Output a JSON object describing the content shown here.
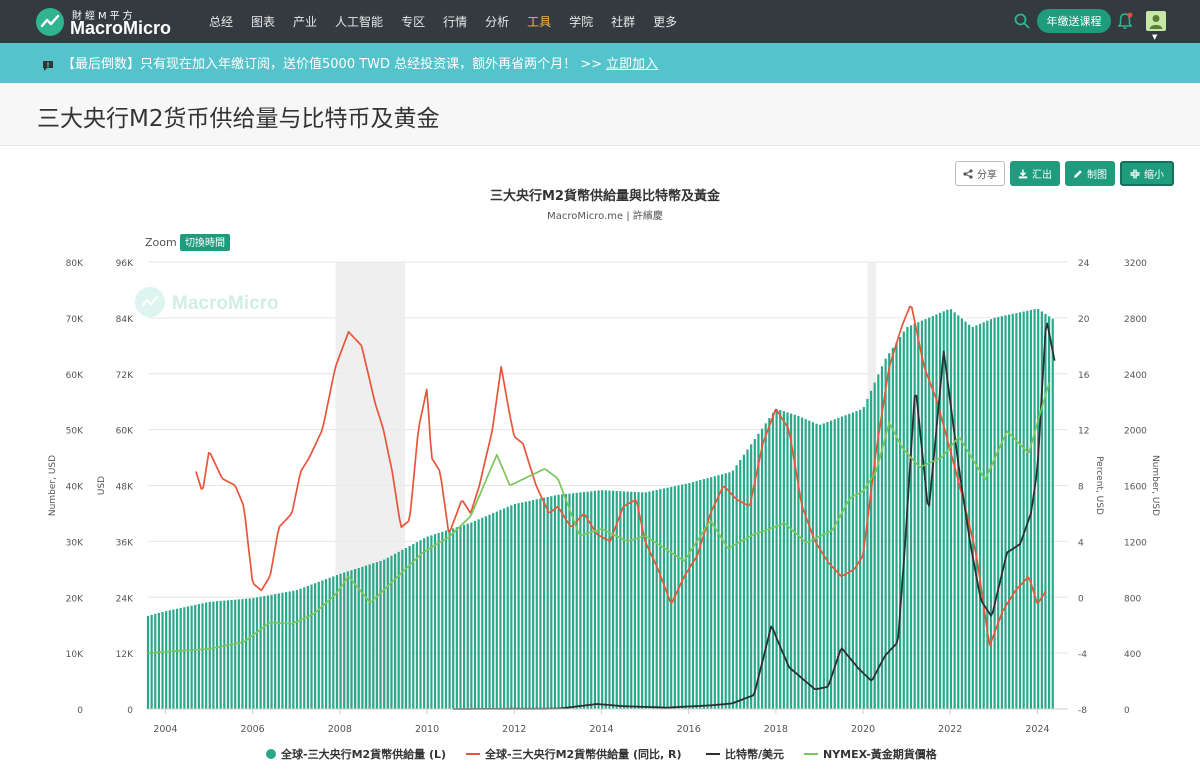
{
  "header": {
    "logo_sub": "財經M平方",
    "logo_main": "MacroMicro",
    "nav": [
      "总经",
      "图表",
      "产业",
      "人工智能",
      "专区",
      "行情",
      "分析",
      "工具",
      "学院",
      "社群",
      "更多"
    ],
    "active_nav_index": 7,
    "course_button": "年缴送课程"
  },
  "banner": {
    "text": "【最后倒数】只有现在加入年缴订阅，送价值5000 TWD 总经投资课，额外再省两个月！ >>",
    "link": "立即加入"
  },
  "page": {
    "title": "三大央行M2货币供给量与比特币及黄金"
  },
  "toolbar": {
    "share": "分享",
    "export": "汇出",
    "draw": "制图",
    "shrink": "缩小"
  },
  "chart_data": {
    "type": "line",
    "title": "三大央行M2貨幣供給量與比特幣及黃金",
    "subtitle": "MacroMicro.me | 許繽慶",
    "zoom_label": "Zoom",
    "zoom_button": "切換時間",
    "watermark": "MacroMicro",
    "x_ticks": [
      "2004",
      "2006",
      "2008",
      "2010",
      "2012",
      "2014",
      "2016",
      "2018",
      "2020",
      "2022",
      "2024"
    ],
    "x_range": [
      2003.6,
      2024.7
    ],
    "axes": {
      "left_outer": {
        "label": "Number, USD",
        "ticks": [
          "0",
          "10K",
          "20K",
          "30K",
          "40K",
          "50K",
          "60K",
          "70K",
          "80K"
        ],
        "range": [
          0,
          80000
        ]
      },
      "left_inner": {
        "label": "USD",
        "ticks": [
          "0",
          "12K",
          "24K",
          "36K",
          "48K",
          "60K",
          "72K",
          "84K",
          "96K"
        ],
        "range": [
          0,
          96000
        ]
      },
      "right_inner": {
        "label": "Percent, USD",
        "ticks": [
          "-8",
          "-4",
          "0",
          "4",
          "8",
          "12",
          "16",
          "20",
          "24"
        ],
        "range": [
          -8,
          24
        ]
      },
      "right_outer": {
        "label": "Number, USD",
        "ticks": [
          "0",
          "400",
          "800",
          "1200",
          "1600",
          "2000",
          "2400",
          "2800",
          "3200"
        ],
        "range": [
          0,
          3200
        ]
      }
    },
    "recessions": [
      [
        2007.9,
        2009.5
      ],
      [
        2020.1,
        2020.3
      ]
    ],
    "series": [
      {
        "name": "全球-三大央行M2貨幣供給量 (L)",
        "type": "column",
        "axis": "left_inner",
        "color": "#2aa88a",
        "points": [
          [
            2003.6,
            20000
          ],
          [
            2004.0,
            21000
          ],
          [
            2005.0,
            23000
          ],
          [
            2006.0,
            23800
          ],
          [
            2007.0,
            25500
          ],
          [
            2008.0,
            29000
          ],
          [
            2009.0,
            32000
          ],
          [
            2010.0,
            37000
          ],
          [
            2011.0,
            40000
          ],
          [
            2012.0,
            44000
          ],
          [
            2013.0,
            46000
          ],
          [
            2014.0,
            47000
          ],
          [
            2015.0,
            46500
          ],
          [
            2016.0,
            48500
          ],
          [
            2017.0,
            51000
          ],
          [
            2018.0,
            64500
          ],
          [
            2018.5,
            63000
          ],
          [
            2019.0,
            61000
          ],
          [
            2020.0,
            64500
          ],
          [
            2020.5,
            75000
          ],
          [
            2021.0,
            82000
          ],
          [
            2022.0,
            86000
          ],
          [
            2022.5,
            82000
          ],
          [
            2023.0,
            84000
          ],
          [
            2024.0,
            86000
          ],
          [
            2024.4,
            83500
          ]
        ]
      },
      {
        "name": "全球-三大央行M2貨幣供給量 (同比, R)",
        "type": "line",
        "axis": "right_inner",
        "color": "#e8553a",
        "points": [
          [
            2004.7,
            9.0
          ],
          [
            2004.85,
            7.5
          ],
          [
            2005.0,
            10.5
          ],
          [
            2005.3,
            8.5
          ],
          [
            2005.6,
            8.0
          ],
          [
            2005.8,
            6.5
          ],
          [
            2006.0,
            1.0
          ],
          [
            2006.2,
            0.5
          ],
          [
            2006.4,
            1.5
          ],
          [
            2006.6,
            5.0
          ],
          [
            2006.9,
            6.0
          ],
          [
            2007.1,
            9.0
          ],
          [
            2007.3,
            10.0
          ],
          [
            2007.6,
            12.0
          ],
          [
            2007.9,
            16.5
          ],
          [
            2008.2,
            19.0
          ],
          [
            2008.5,
            18.0
          ],
          [
            2008.8,
            14.0
          ],
          [
            2009.0,
            12.0
          ],
          [
            2009.2,
            9.0
          ],
          [
            2009.4,
            5.0
          ],
          [
            2009.6,
            5.5
          ],
          [
            2009.8,
            12.0
          ],
          [
            2010.0,
            15.0
          ],
          [
            2010.1,
            10.0
          ],
          [
            2010.3,
            9.0
          ],
          [
            2010.5,
            4.5
          ],
          [
            2010.8,
            7.0
          ],
          [
            2011.0,
            6.0
          ],
          [
            2011.2,
            8.0
          ],
          [
            2011.5,
            12.0
          ],
          [
            2011.7,
            16.5
          ],
          [
            2011.9,
            13.0
          ],
          [
            2012.0,
            11.5
          ],
          [
            2012.2,
            11.0
          ],
          [
            2012.5,
            8.0
          ],
          [
            2012.8,
            6.0
          ],
          [
            2013.0,
            6.5
          ],
          [
            2013.3,
            5.0
          ],
          [
            2013.6,
            6.0
          ],
          [
            2013.9,
            4.5
          ],
          [
            2014.2,
            4.0
          ],
          [
            2014.5,
            6.5
          ],
          [
            2014.8,
            7.0
          ],
          [
            2015.0,
            4.0
          ],
          [
            2015.3,
            2.0
          ],
          [
            2015.6,
            -0.5
          ],
          [
            2015.9,
            1.5
          ],
          [
            2016.2,
            3.0
          ],
          [
            2016.5,
            6.0
          ],
          [
            2016.8,
            8.0
          ],
          [
            2017.1,
            7.0
          ],
          [
            2017.4,
            6.5
          ],
          [
            2017.7,
            11.0
          ],
          [
            2018.0,
            13.5
          ],
          [
            2018.3,
            12.0
          ],
          [
            2018.6,
            6.5
          ],
          [
            2018.9,
            4.0
          ],
          [
            2019.2,
            2.5
          ],
          [
            2019.5,
            1.5
          ],
          [
            2019.8,
            2.0
          ],
          [
            2020.0,
            3.0
          ],
          [
            2020.3,
            10.5
          ],
          [
            2020.6,
            16.5
          ],
          [
            2020.9,
            19.5
          ],
          [
            2021.1,
            21.0
          ],
          [
            2021.4,
            16.5
          ],
          [
            2021.7,
            14.0
          ],
          [
            2022.0,
            10.5
          ],
          [
            2022.3,
            7.0
          ],
          [
            2022.6,
            3.0
          ],
          [
            2022.9,
            -3.5
          ],
          [
            2023.2,
            -1.0
          ],
          [
            2023.5,
            0.5
          ],
          [
            2023.8,
            1.5
          ],
          [
            2024.0,
            -0.5
          ],
          [
            2024.2,
            0.5
          ]
        ]
      },
      {
        "name": "比特幣/美元",
        "type": "line",
        "axis": "left_outer",
        "color": "#2b2f33",
        "points": [
          [
            2010.6,
            0
          ],
          [
            2013.0,
            50
          ],
          [
            2013.9,
            900
          ],
          [
            2014.5,
            500
          ],
          [
            2015.5,
            250
          ],
          [
            2016.5,
            650
          ],
          [
            2017.0,
            1000
          ],
          [
            2017.5,
            2500
          ],
          [
            2017.9,
            15000
          ],
          [
            2018.0,
            13000
          ],
          [
            2018.3,
            7500
          ],
          [
            2018.9,
            3500
          ],
          [
            2019.2,
            4000
          ],
          [
            2019.5,
            11000
          ],
          [
            2019.9,
            7200
          ],
          [
            2020.2,
            5000
          ],
          [
            2020.5,
            9500
          ],
          [
            2020.8,
            12000
          ],
          [
            2020.95,
            28000
          ],
          [
            2021.2,
            58000
          ],
          [
            2021.5,
            35000
          ],
          [
            2021.85,
            64000
          ],
          [
            2022.2,
            43000
          ],
          [
            2022.45,
            30000
          ],
          [
            2022.7,
            19500
          ],
          [
            2022.95,
            16500
          ],
          [
            2023.3,
            28000
          ],
          [
            2023.6,
            29500
          ],
          [
            2023.85,
            35000
          ],
          [
            2024.0,
            43000
          ],
          [
            2024.2,
            70000
          ],
          [
            2024.4,
            62000
          ]
        ]
      },
      {
        "name": "NYMEX-黃金期貨價格",
        "type": "line",
        "axis": "right_outer",
        "color": "#7cc55c",
        "points": [
          [
            2003.6,
            400
          ],
          [
            2004.0,
            410
          ],
          [
            2005.0,
            430
          ],
          [
            2005.8,
            480
          ],
          [
            2006.4,
            620
          ],
          [
            2006.9,
            610
          ],
          [
            2007.4,
            680
          ],
          [
            2007.9,
            820
          ],
          [
            2008.2,
            950
          ],
          [
            2008.7,
            760
          ],
          [
            2009.3,
            940
          ],
          [
            2009.9,
            1120
          ],
          [
            2010.5,
            1230
          ],
          [
            2011.0,
            1380
          ],
          [
            2011.6,
            1820
          ],
          [
            2011.9,
            1600
          ],
          [
            2012.3,
            1660
          ],
          [
            2012.7,
            1720
          ],
          [
            2013.0,
            1650
          ],
          [
            2013.5,
            1240
          ],
          [
            2014.0,
            1290
          ],
          [
            2014.6,
            1200
          ],
          [
            2015.0,
            1240
          ],
          [
            2015.9,
            1060
          ],
          [
            2016.5,
            1350
          ],
          [
            2016.9,
            1150
          ],
          [
            2017.5,
            1250
          ],
          [
            2018.2,
            1330
          ],
          [
            2018.7,
            1190
          ],
          [
            2019.3,
            1280
          ],
          [
            2019.7,
            1510
          ],
          [
            2020.0,
            1560
          ],
          [
            2020.3,
            1700
          ],
          [
            2020.6,
            2050
          ],
          [
            2020.9,
            1870
          ],
          [
            2021.3,
            1730
          ],
          [
            2021.8,
            1800
          ],
          [
            2022.2,
            1950
          ],
          [
            2022.8,
            1640
          ],
          [
            2023.3,
            1990
          ],
          [
            2023.8,
            1830
          ],
          [
            2024.0,
            2050
          ],
          [
            2024.3,
            2370
          ]
        ]
      }
    ],
    "legend": [
      "全球-三大央行M2貨幣供給量 (L)",
      "全球-三大央行M2貨幣供給量 (同比, R)",
      "比特幣/美元",
      "NYMEX-黃金期貨價格"
    ]
  }
}
